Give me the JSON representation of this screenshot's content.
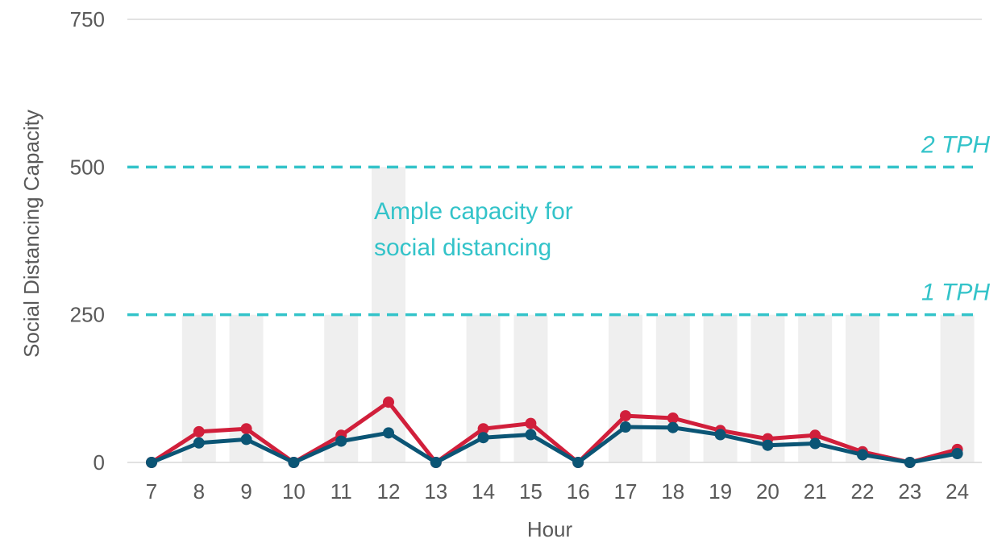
{
  "chart_data": {
    "type": "line",
    "title": "",
    "xlabel": "Hour",
    "ylabel": "Social Distancing Capacity",
    "categories": [
      "7",
      "8",
      "9",
      "10",
      "11",
      "12",
      "13",
      "14",
      "15",
      "16",
      "17",
      "18",
      "19",
      "20",
      "21",
      "22",
      "23",
      "24"
    ],
    "ylim": [
      0,
      750
    ],
    "yticks": [
      "0",
      "250",
      "500",
      "750"
    ],
    "grid": "horizontal",
    "legend": "none",
    "series": [
      {
        "color": "#d11f3b",
        "values": [
          0,
          52,
          57,
          0,
          46,
          102,
          0,
          57,
          66,
          0,
          79,
          75,
          54,
          40,
          46,
          18,
          0,
          22
        ]
      },
      {
        "color": "#0b5575",
        "values": [
          0,
          33,
          39,
          0,
          36,
          50,
          0,
          42,
          47,
          0,
          60,
          59,
          47,
          29,
          32,
          13,
          0,
          15
        ]
      }
    ],
    "highlight_bars": {
      "color": "#efefef",
      "hours": [
        "8",
        "9",
        "11",
        "12",
        "14",
        "15",
        "17",
        "18",
        "19",
        "20",
        "21",
        "22",
        "24"
      ],
      "values": [
        250,
        250,
        250,
        500,
        250,
        250,
        250,
        250,
        250,
        250,
        250,
        250,
        250
      ]
    },
    "reference_lines": [
      {
        "value": 500,
        "label": "2 TPH",
        "color": "#33c3c9"
      },
      {
        "value": 250,
        "label": "1 TPH",
        "color": "#33c3c9"
      }
    ],
    "annotation": {
      "lines": [
        "Ample capacity for",
        "social distancing"
      ],
      "color": "#33c3c9"
    }
  }
}
